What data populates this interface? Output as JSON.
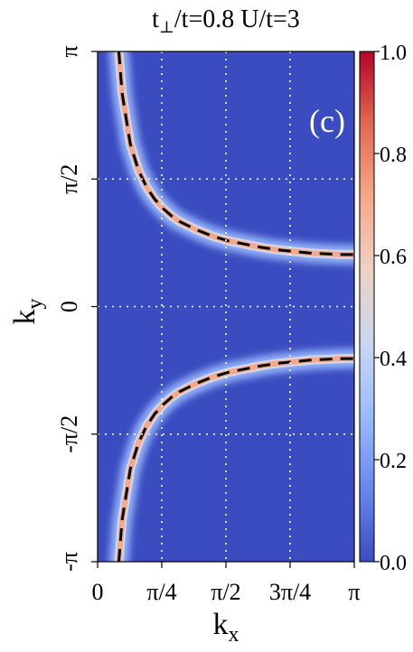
{
  "chart_data": {
    "type": "heatmap",
    "title_parts": [
      "t",
      "⊥",
      "/t=0.8  U/t=3"
    ],
    "panel_label": "(c)",
    "xlabel_main": "k",
    "xlabel_sub": "x",
    "ylabel_main": "k",
    "ylabel_sub": "y",
    "xlim": [
      0,
      3.14159
    ],
    "ylim": [
      -3.14159,
      3.14159
    ],
    "x_ticks": [
      {
        "value": 0,
        "label": "0"
      },
      {
        "value": 0.7854,
        "label": "π/4"
      },
      {
        "value": 1.5708,
        "label": "π/2"
      },
      {
        "value": 2.3562,
        "label": "3π/4"
      },
      {
        "value": 3.14159,
        "label": "π"
      }
    ],
    "y_ticks": [
      {
        "value": -3.14159,
        "label": "-π"
      },
      {
        "value": -1.5708,
        "label": "-π/2"
      },
      {
        "value": 0,
        "label": "0"
      },
      {
        "value": 1.5708,
        "label": "π/2"
      },
      {
        "value": 3.14159,
        "label": "π"
      }
    ],
    "grid": true,
    "colorbar": {
      "range": [
        0,
        1
      ],
      "ticks": [
        "0.0",
        "0.2",
        "0.4",
        "0.6",
        "0.8",
        "1.0"
      ],
      "colors": [
        "#3b4cc0",
        "#6788ee",
        "#9abbff",
        "#c9d7f0",
        "#edd1c2",
        "#f7a889",
        "#e26952",
        "#b40426"
      ]
    },
    "fermi_surface": {
      "upper": {
        "x": [
          0.26,
          0.3,
          0.4,
          0.5,
          0.6,
          0.7,
          0.8,
          0.9,
          1.0,
          1.2,
          1.4,
          1.6,
          1.8,
          2.0,
          2.2,
          2.4,
          2.6,
          2.8,
          3.0,
          3.14
        ],
        "y": [
          3.14,
          2.63,
          2.0,
          1.68,
          1.47,
          1.32,
          1.21,
          1.12,
          1.05,
          0.95,
          0.87,
          0.81,
          0.77,
          0.73,
          0.7,
          0.68,
          0.66,
          0.65,
          0.64,
          0.64
        ]
      },
      "lower": {
        "x": [
          0.26,
          0.3,
          0.4,
          0.5,
          0.6,
          0.7,
          0.8,
          0.9,
          1.0,
          1.2,
          1.4,
          1.6,
          1.8,
          2.0,
          2.2,
          2.4,
          2.6,
          2.8,
          3.0,
          3.14
        ],
        "y": [
          -3.14,
          -2.63,
          -2.0,
          -1.68,
          -1.47,
          -1.32,
          -1.21,
          -1.12,
          -1.05,
          -0.95,
          -0.87,
          -0.81,
          -0.77,
          -0.73,
          -0.7,
          -0.68,
          -0.66,
          -0.65,
          -0.64,
          -0.64
        ]
      },
      "peak_value": 0.7,
      "curve_color": "#f4a98c",
      "dashed_color": "#000000"
    },
    "background_value": 0.0,
    "background_color": "#3b4cc0"
  }
}
